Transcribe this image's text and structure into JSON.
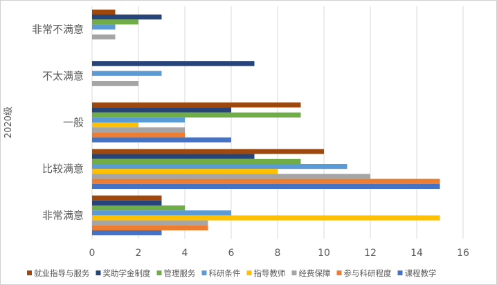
{
  "chart_data": {
    "type": "bar",
    "orientation": "horizontal",
    "ylabel": "2020级",
    "xlim": [
      0,
      16
    ],
    "xticks": [
      "0",
      "2",
      "4",
      "6",
      "8",
      "10",
      "12",
      "14",
      "16"
    ],
    "grid": true,
    "legend_position": "bottom",
    "categories": [
      "非常不满意",
      "不太满意",
      "一般",
      "比较满意",
      "非常满意"
    ],
    "series": [
      {
        "name": "就业指导与服务",
        "color": "#9e480e",
        "values": [
          1,
          0,
          9,
          10,
          3
        ]
      },
      {
        "name": "奖助学金制度",
        "color": "#264478",
        "values": [
          3,
          7,
          6,
          7,
          3
        ]
      },
      {
        "name": "管理服务",
        "color": "#70ad47",
        "values": [
          2,
          0,
          9,
          9,
          4
        ]
      },
      {
        "name": "科研条件",
        "color": "#5b9bd5",
        "values": [
          1,
          3,
          4,
          11,
          6
        ]
      },
      {
        "name": "指导教师",
        "color": "#ffc000",
        "values": [
          0,
          0,
          2,
          8,
          15
        ]
      },
      {
        "name": "经费保障",
        "color": "#a5a5a5",
        "values": [
          1,
          2,
          4,
          12,
          5
        ]
      },
      {
        "name": "参与科研程度",
        "color": "#ed7d31",
        "values": [
          0,
          0,
          4,
          15,
          5
        ]
      },
      {
        "name": "课程教学",
        "color": "#4472c4",
        "values": [
          0,
          0,
          6,
          15,
          3
        ]
      }
    ]
  }
}
